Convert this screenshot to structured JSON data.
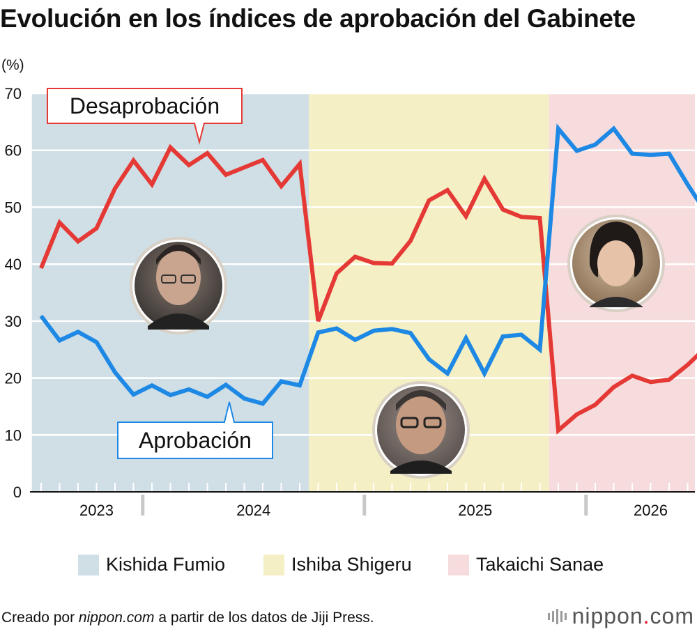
{
  "title": "Evolución en los índices de aprobación del Gabinete",
  "colors": {
    "approval": "#1e88e5",
    "disapproval": "#e53935",
    "kishida_bg": "#cfdfe5",
    "ishiba_bg": "#f4efc4",
    "takaichi_bg": "#f6dcdc"
  },
  "legend": [
    {
      "label": "Kishida Fumio",
      "color": "#cfdfe5"
    },
    {
      "label": "Ishiba Shigeru",
      "color": "#f4efc4"
    },
    {
      "label": "Takaichi Sanae",
      "color": "#f6dcdc"
    }
  ],
  "footer": {
    "credit_prefix": "Creado por ",
    "credit_site": "nippon.com",
    "credit_suffix": " a partir de los datos de Jiji Press.",
    "brand_main": "nippon",
    "brand_dot": ".",
    "brand_tld": "com"
  },
  "chart_data": {
    "type": "line",
    "ylabel": "(%)",
    "ylim": [
      0,
      70
    ],
    "yticks": [
      0,
      10,
      20,
      30,
      40,
      50,
      60,
      70
    ],
    "grid": true,
    "year_labels": [
      {
        "label": "2023",
        "x": 3
      },
      {
        "label": "2024",
        "x": 11.5
      },
      {
        "label": "2025",
        "x": 23.5
      },
      {
        "label": "2026",
        "x": 33
      }
    ],
    "year_dividers": [
      5.5,
      17.5,
      29.5
    ],
    "periods": [
      {
        "name": "Kishida Fumio",
        "start": -0.5,
        "end": 14.5,
        "color": "#cfdfe5"
      },
      {
        "name": "Ishiba Shigeru",
        "start": 14.5,
        "end": 27.5,
        "color": "#f4efc4"
      },
      {
        "name": "Takaichi Sanae",
        "start": 27.5,
        "end": 36.5,
        "color": "#f6dcdc"
      }
    ],
    "callouts": [
      {
        "series": "Desaprobación",
        "text": "Desaprobación"
      },
      {
        "series": "Aprobación",
        "text": "Aprobación"
      }
    ],
    "series": [
      {
        "name": "Desaprobación",
        "color": "#e53935",
        "values": [
          39.3,
          47.3,
          44.0,
          46.3,
          53.3,
          58.2,
          54.0,
          60.5,
          57.4,
          59.5,
          55.7,
          57.0,
          58.3,
          53.7,
          57.6,
          30.0,
          38.4,
          41.3,
          40.2,
          40.1,
          44.1,
          51.2,
          53.0,
          48.4,
          55.0,
          49.6,
          48.3,
          48.1,
          10.8,
          13.6,
          15.3,
          18.4,
          20.4,
          19.3,
          19.7,
          22.3,
          25.4
        ]
      },
      {
        "name": "Aprobación",
        "color": "#1e88e5",
        "values": [
          30.9,
          26.6,
          28.1,
          26.3,
          21.0,
          17.1,
          18.7,
          17.0,
          18.0,
          16.7,
          18.8,
          16.4,
          15.5,
          19.4,
          18.7,
          28.0,
          28.7,
          26.7,
          28.3,
          28.6,
          27.9,
          23.3,
          20.8,
          27.0,
          20.8,
          27.3,
          27.6,
          25.0,
          63.8,
          59.9,
          61.0,
          63.8,
          59.4,
          59.2,
          59.4,
          54.0,
          49.0
        ]
      }
    ]
  }
}
